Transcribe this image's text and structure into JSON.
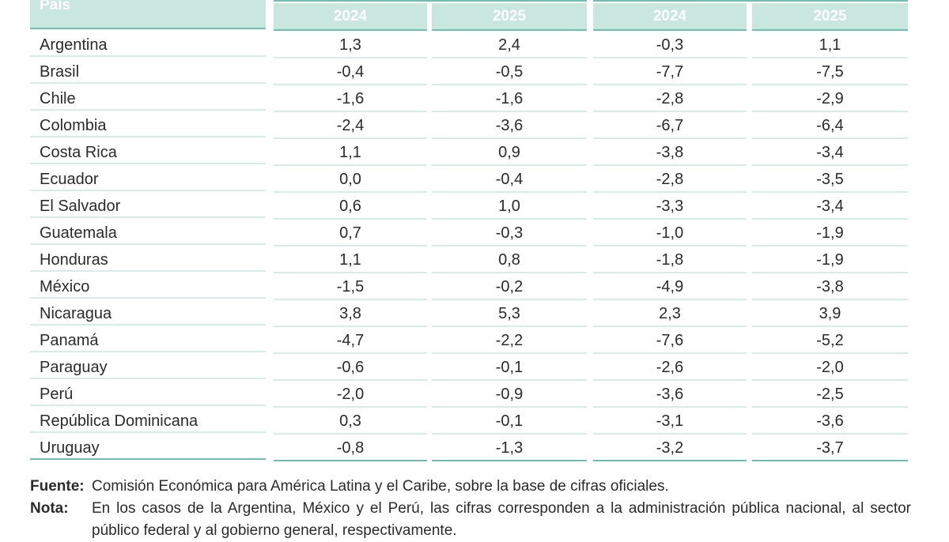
{
  "table": {
    "country_header": "País",
    "years": [
      "2024",
      "2025",
      "2024",
      "2025"
    ],
    "rows": [
      {
        "country": "Argentina",
        "values": [
          "1,3",
          "2,4",
          "-0,3",
          "1,1"
        ]
      },
      {
        "country": "Brasil",
        "values": [
          "-0,4",
          "-0,5",
          "-7,7",
          "-7,5"
        ]
      },
      {
        "country": "Chile",
        "values": [
          "-1,6",
          "-1,6",
          "-2,8",
          "-2,9"
        ]
      },
      {
        "country": "Colombia",
        "values": [
          "-2,4",
          "-3,6",
          "-6,7",
          "-6,4"
        ]
      },
      {
        "country": "Costa Rica",
        "values": [
          "1,1",
          "0,9",
          "-3,8",
          "-3,4"
        ]
      },
      {
        "country": "Ecuador",
        "values": [
          "0,0",
          "-0,4",
          "-2,8",
          "-3,5"
        ]
      },
      {
        "country": "El Salvador",
        "values": [
          "0,6",
          "1,0",
          "-3,3",
          "-3,4"
        ]
      },
      {
        "country": "Guatemala",
        "values": [
          "0,7",
          "-0,3",
          "-1,0",
          "-1,9"
        ]
      },
      {
        "country": "Honduras",
        "values": [
          "1,1",
          "0,8",
          "-1,8",
          "-1,9"
        ]
      },
      {
        "country": "México",
        "values": [
          "-1,5",
          "-0,2",
          "-4,9",
          "-3,8"
        ]
      },
      {
        "country": "Nicaragua",
        "values": [
          "3,8",
          "5,3",
          "2,3",
          "3,9"
        ]
      },
      {
        "country": "Panamá",
        "values": [
          "-4,7",
          "-2,2",
          "-7,6",
          "-5,2"
        ]
      },
      {
        "country": "Paraguay",
        "values": [
          "-0,6",
          "-0,1",
          "-2,6",
          "-2,0"
        ]
      },
      {
        "country": "Perú",
        "values": [
          "-2,0",
          "-0,9",
          "-3,6",
          "-2,5"
        ]
      },
      {
        "country": "República Dominicana",
        "values": [
          "0,3",
          "-0,1",
          "-3,1",
          "-3,6"
        ]
      },
      {
        "country": "Uruguay",
        "values": [
          "-0,8",
          "-1,3",
          "-3,2",
          "-3,7"
        ]
      }
    ]
  },
  "notes": {
    "source_label": "Fuente",
    "source_text": "Comisión Económica para América Latina y el Caribe, sobre la base de cifras oficiales.",
    "note_label": "Nota",
    "note_text": "En los casos de la Argentina, México y el Perú, las cifras corresponden a la administración pública nacional, al sector público federal y al gobierno general, respectivamente."
  },
  "colors": {
    "header_fill": "#c9e6df",
    "rule": "#6fbfb0",
    "row_rule": "#d7ece6"
  }
}
